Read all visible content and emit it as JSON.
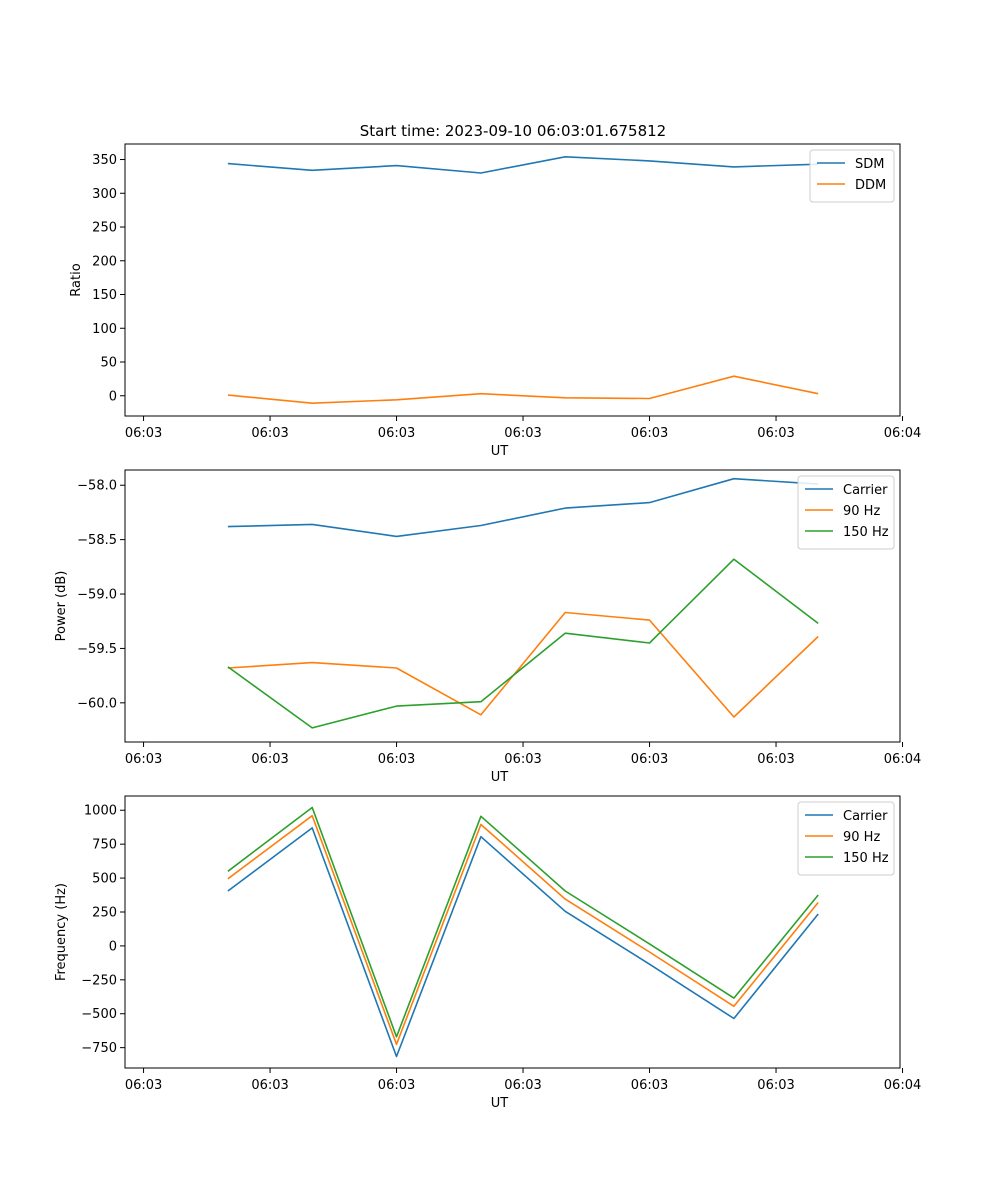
{
  "figure": {
    "title": "Start time: 2023-09-10 06:03:01.675812"
  },
  "chart_data": [
    {
      "type": "line",
      "id": "ratio",
      "title": "Start time: 2023-09-10 06:03:01.675812",
      "xlabel": "UT",
      "ylabel": "Ratio",
      "x_tick_labels": [
        "06:03",
        "06:03",
        "06:03",
        "06:03",
        "06:03",
        "06:03",
        "06:04"
      ],
      "x": [
        1,
        2,
        3,
        4,
        5,
        6,
        7,
        8
      ],
      "xlim": [
        -0.22,
        8.97
      ],
      "yticks": [
        0,
        50,
        100,
        150,
        200,
        250,
        300,
        350
      ],
      "ylim": [
        -30,
        373
      ],
      "legend_location": "top-right",
      "series": [
        {
          "name": "SDM",
          "color": "#1f77b4",
          "values": [
            344,
            334,
            341,
            330,
            354,
            348,
            339,
            343
          ]
        },
        {
          "name": "DDM",
          "color": "#ff7f0e",
          "values": [
            1,
            -11,
            -6,
            3,
            -3,
            -4,
            29,
            3
          ]
        }
      ]
    },
    {
      "type": "line",
      "id": "power",
      "xlabel": "UT",
      "ylabel": "Power (dB)",
      "x_tick_labels": [
        "06:03",
        "06:03",
        "06:03",
        "06:03",
        "06:03",
        "06:03",
        "06:04"
      ],
      "x": [
        1,
        2,
        3,
        4,
        5,
        6,
        7,
        8
      ],
      "xlim": [
        -0.22,
        8.97
      ],
      "yticks": [
        -60.0,
        -59.5,
        -59.0,
        -58.5,
        -58.0
      ],
      "ytick_labels": [
        "−60.0",
        "−59.5",
        "−59.0",
        "−58.5",
        "−58.0"
      ],
      "ylim": [
        -60.36,
        -57.86
      ],
      "legend_location": "top-right",
      "series": [
        {
          "name": "Carrier",
          "color": "#1f77b4",
          "values": [
            -58.38,
            -58.36,
            -58.47,
            -58.37,
            -58.21,
            -58.16,
            -57.94,
            -57.99
          ]
        },
        {
          "name": "90 Hz",
          "color": "#ff7f0e",
          "values": [
            -59.68,
            -59.63,
            -59.68,
            -60.11,
            -59.17,
            -59.24,
            -60.13,
            -59.39
          ]
        },
        {
          "name": "150 Hz",
          "color": "#2ca02c",
          "values": [
            -59.67,
            -60.23,
            -60.03,
            -59.99,
            -59.36,
            -59.45,
            -58.68,
            -59.27
          ]
        }
      ]
    },
    {
      "type": "line",
      "id": "frequency",
      "xlabel": "UT",
      "ylabel": "Frequency (Hz)",
      "x_tick_labels": [
        "06:03",
        "06:03",
        "06:03",
        "06:03",
        "06:03",
        "06:03",
        "06:04"
      ],
      "x": [
        1,
        2,
        3,
        4,
        5,
        6,
        7,
        8
      ],
      "xlim": [
        -0.22,
        8.97
      ],
      "yticks": [
        -750,
        -500,
        -250,
        0,
        250,
        500,
        750,
        1000
      ],
      "ytick_labels": [
        "−750",
        "−500",
        "−250",
        "0",
        "250",
        "500",
        "750",
        "1000"
      ],
      "ylim": [
        -900,
        1105
      ],
      "legend_location": "top-right",
      "series": [
        {
          "name": "Carrier",
          "color": "#1f77b4",
          "values": [
            405,
            870,
            -815,
            805,
            255,
            -135,
            -535,
            235
          ]
        },
        {
          "name": "90 Hz",
          "color": "#ff7f0e",
          "values": [
            495,
            960,
            -725,
            895,
            345,
            -45,
            -445,
            320
          ]
        },
        {
          "name": "150 Hz",
          "color": "#2ca02c",
          "values": [
            550,
            1020,
            -670,
            955,
            405,
            15,
            -385,
            375
          ]
        }
      ]
    }
  ]
}
